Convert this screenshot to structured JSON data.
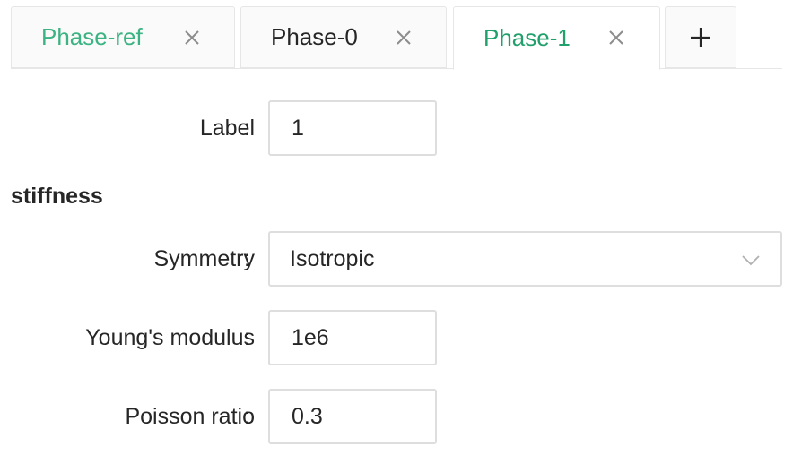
{
  "tabs": [
    {
      "label": "Phase-ref",
      "closable": true,
      "active": false,
      "color": "#3cb383"
    },
    {
      "label": "Phase-0",
      "closable": true,
      "active": false,
      "color": "#262626"
    },
    {
      "label": "Phase-1",
      "closable": true,
      "active": true,
      "color": "#22a06b"
    }
  ],
  "tabs_add": {
    "icon": "plus-icon"
  },
  "form": {
    "label": {
      "label": "Label",
      "colon": ":",
      "value": "1"
    },
    "section": {
      "title": "stiffness"
    },
    "symmetry": {
      "label": "Symmetry",
      "colon": ":",
      "value": "Isotropic",
      "icon": "chevron-down-icon"
    },
    "youngs_modulus": {
      "label": "Young's modulus",
      "colon": ":",
      "value": "1e6"
    },
    "poisson_ratio": {
      "label": "Poisson ratio",
      "colon": ":",
      "value": "0.3"
    }
  },
  "colors": {
    "accent": "#22a06b",
    "border": "#dedede",
    "text": "#262626"
  }
}
